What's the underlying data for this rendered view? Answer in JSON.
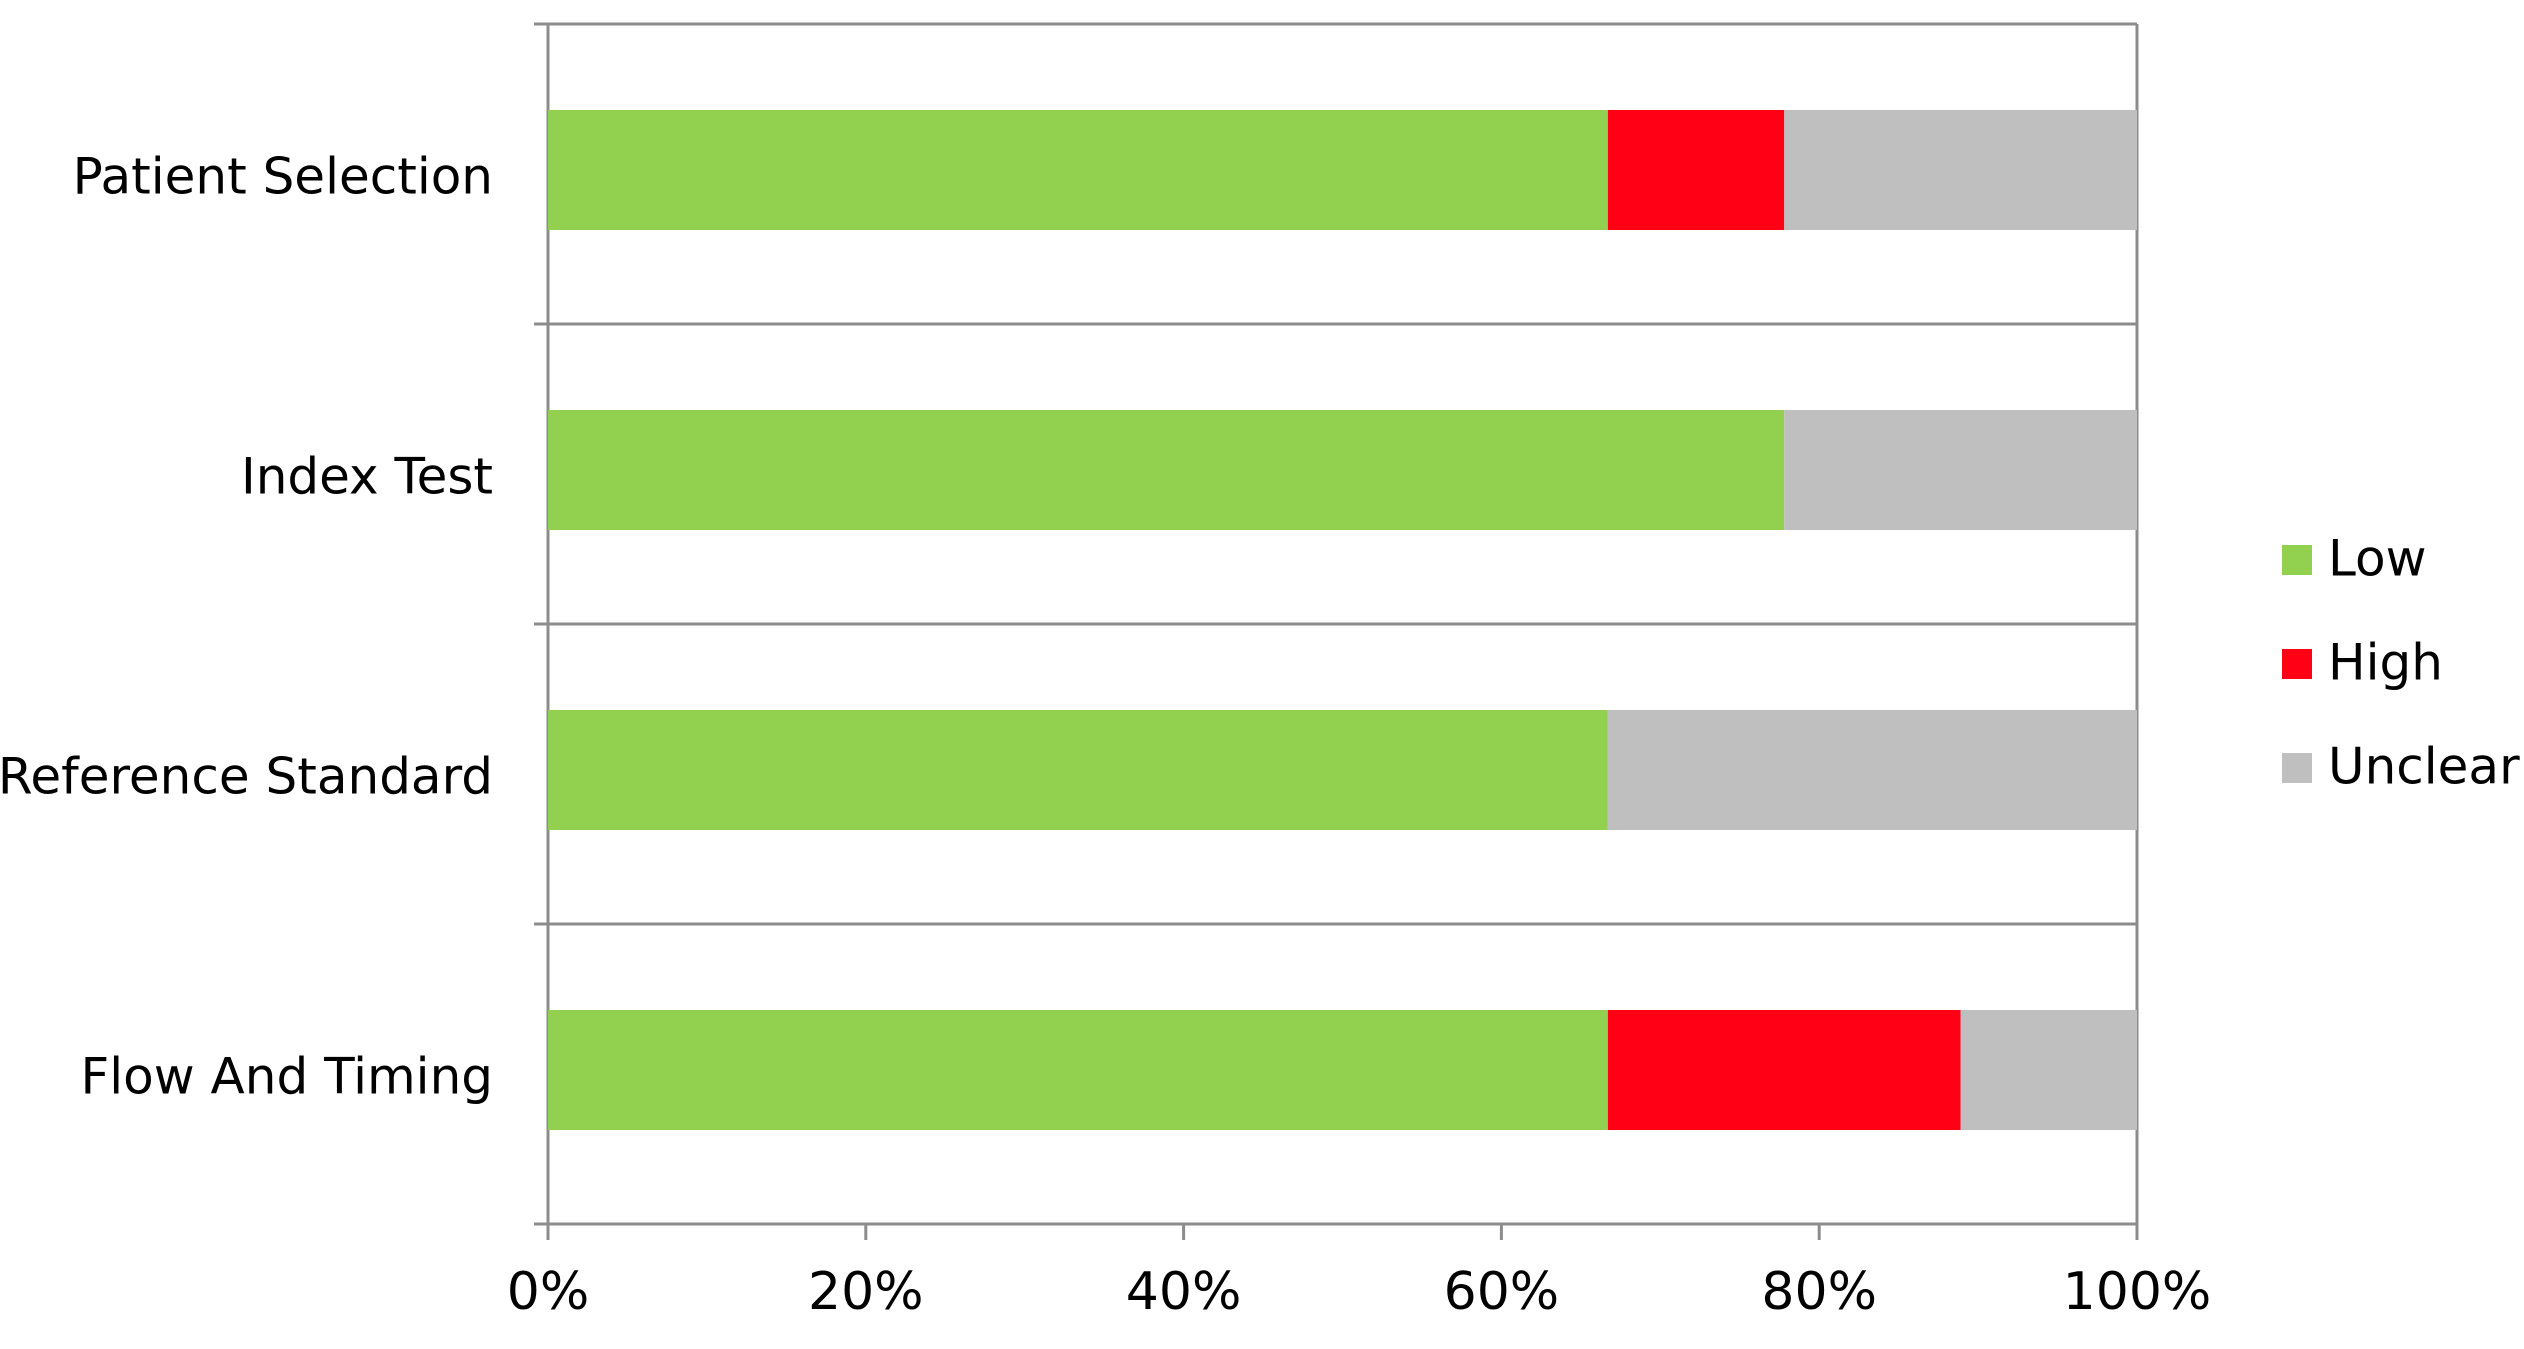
{
  "chart_data": {
    "type": "bar",
    "orientation": "horizontal",
    "stacked": true,
    "categories": [
      "Patient Selection",
      "Index Test",
      "Reference Standard",
      "Flow And Timing"
    ],
    "series": [
      {
        "name": "Low",
        "color": "#92d050",
        "values": [
          66.7,
          77.8,
          66.7,
          66.7
        ]
      },
      {
        "name": "High",
        "color": "#ff0015",
        "values": [
          11.1,
          0,
          0,
          22.2
        ]
      },
      {
        "name": "Unclear",
        "color": "#bfbfbf",
        "values": [
          22.2,
          22.2,
          33.3,
          11.1
        ]
      }
    ],
    "xticks": [
      "0%",
      "20%",
      "40%",
      "60%",
      "80%",
      "100%"
    ],
    "xlim": [
      0,
      100
    ],
    "legend_position": "right",
    "grid": "horizontal category separators"
  }
}
